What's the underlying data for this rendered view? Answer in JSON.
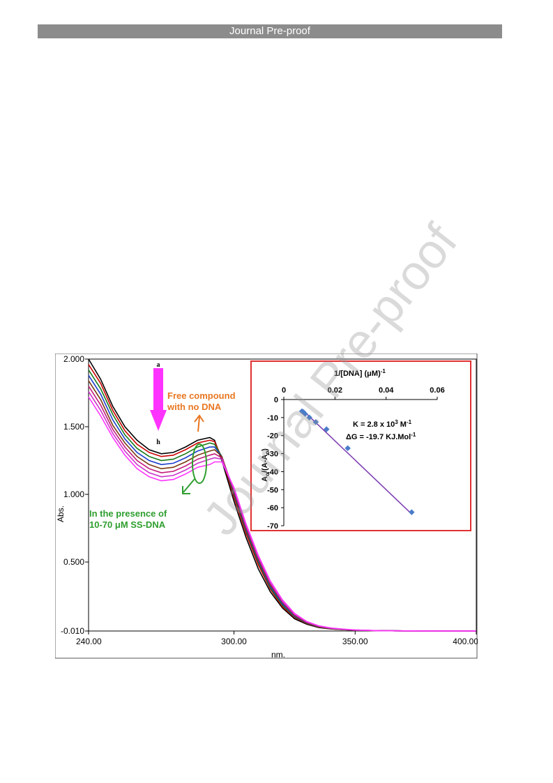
{
  "header": {
    "title": "Journal Pre-proof"
  },
  "watermark": "Journal Pre-proof",
  "chart_data": [
    {
      "type": "line",
      "xlabel": "nm.",
      "ylabel": "Abs.",
      "xlim": [
        240,
        400
      ],
      "ylim": [
        -0.01,
        2.0
      ],
      "x_ticks": [
        "240.00",
        "300.00",
        "350.00",
        "400.00"
      ],
      "y_ticks": [
        "2.000",
        "1.500",
        "1.000",
        "0.500",
        "-0.010"
      ],
      "x_tick_values": [
        240,
        300,
        350,
        400
      ],
      "y_tick_values": [
        2.0,
        1.5,
        1.0,
        0.5,
        -0.01
      ],
      "x": [
        240,
        245,
        250,
        255,
        260,
        265,
        270,
        275,
        280,
        285,
        290,
        292,
        295,
        300,
        305,
        310,
        315,
        320,
        325,
        330,
        335,
        340,
        345,
        350,
        360,
        370,
        380,
        390,
        400
      ],
      "series_colors": [
        "#000000",
        "#cc0000",
        "#1a7a1a",
        "#1a3dcc",
        "#7a3a10",
        "#c2187a",
        "#cc33cc",
        "#ff33ff"
      ],
      "series": [
        {
          "values": [
            2.0,
            1.85,
            1.65,
            1.5,
            1.4,
            1.33,
            1.3,
            1.31,
            1.35,
            1.4,
            1.42,
            1.4,
            1.25,
            0.95,
            0.68,
            0.45,
            0.28,
            0.16,
            0.08,
            0.04,
            0.015,
            0.005,
            0.0,
            -0.005,
            -0.008,
            -0.009,
            -0.01,
            -0.01,
            -0.01
          ]
        },
        {
          "values": [
            1.96,
            1.82,
            1.62,
            1.47,
            1.37,
            1.31,
            1.28,
            1.29,
            1.33,
            1.38,
            1.4,
            1.39,
            1.27,
            0.98,
            0.71,
            0.48,
            0.3,
            0.17,
            0.09,
            0.045,
            0.018,
            0.006,
            0.0,
            -0.005,
            -0.008,
            -0.009,
            -0.01,
            -0.01,
            -0.01
          ]
        },
        {
          "values": [
            1.92,
            1.78,
            1.59,
            1.44,
            1.34,
            1.28,
            1.25,
            1.26,
            1.3,
            1.35,
            1.38,
            1.37,
            1.28,
            1.0,
            0.73,
            0.5,
            0.31,
            0.18,
            0.095,
            0.048,
            0.02,
            0.007,
            0.001,
            -0.004,
            -0.008,
            -0.009,
            -0.01,
            -0.01,
            -0.01
          ]
        },
        {
          "values": [
            1.88,
            1.74,
            1.55,
            1.41,
            1.31,
            1.25,
            1.22,
            1.23,
            1.27,
            1.32,
            1.35,
            1.35,
            1.28,
            1.01,
            0.74,
            0.51,
            0.32,
            0.19,
            0.1,
            0.05,
            0.022,
            0.008,
            0.002,
            -0.004,
            -0.008,
            -0.009,
            -0.01,
            -0.01,
            -0.01
          ]
        },
        {
          "values": [
            1.84,
            1.7,
            1.51,
            1.38,
            1.28,
            1.22,
            1.19,
            1.2,
            1.24,
            1.29,
            1.32,
            1.33,
            1.28,
            1.02,
            0.75,
            0.52,
            0.33,
            0.2,
            0.105,
            0.052,
            0.023,
            0.009,
            0.002,
            -0.004,
            -0.008,
            -0.009,
            -0.01,
            -0.01,
            -0.01
          ]
        },
        {
          "values": [
            1.8,
            1.66,
            1.48,
            1.35,
            1.25,
            1.19,
            1.16,
            1.17,
            1.21,
            1.26,
            1.29,
            1.3,
            1.27,
            1.03,
            0.76,
            0.53,
            0.34,
            0.205,
            0.11,
            0.055,
            0.025,
            0.01,
            0.003,
            -0.003,
            -0.008,
            -0.009,
            -0.01,
            -0.01,
            -0.01
          ]
        },
        {
          "values": [
            1.76,
            1.62,
            1.45,
            1.32,
            1.22,
            1.16,
            1.13,
            1.14,
            1.18,
            1.23,
            1.26,
            1.27,
            1.26,
            1.04,
            0.77,
            0.54,
            0.35,
            0.21,
            0.115,
            0.058,
            0.027,
            0.011,
            0.003,
            -0.003,
            -0.008,
            -0.009,
            -0.01,
            -0.01,
            -0.01
          ]
        },
        {
          "values": [
            1.72,
            1.58,
            1.42,
            1.29,
            1.19,
            1.13,
            1.1,
            1.11,
            1.15,
            1.2,
            1.22,
            1.24,
            1.24,
            1.05,
            0.78,
            0.55,
            0.36,
            0.22,
            0.12,
            0.06,
            0.028,
            0.012,
            0.004,
            -0.003,
            -0.008,
            -0.009,
            -0.01,
            -0.01,
            -0.01
          ]
        }
      ],
      "annotations": {
        "arrow_top": "a",
        "arrow_bottom": "h",
        "free_line1": "Free compound",
        "free_line2": "with no DNA",
        "presence_line1": "In the presence of",
        "presence_line2": "10-70 μM SS-DNA"
      },
      "colors": {
        "arrow": "#ff33ff",
        "free": "#e87722",
        "presence": "#2e9e2e",
        "inset_border": "#e03030"
      }
    },
    {
      "type": "scatter",
      "x_axis_label": "1/[DNA] (μM)",
      "x_axis_exponent": "-1",
      "y_axis_label_main": "A",
      "y_axis_label_sub": "o",
      "y_axis_label_mid": "/(A-A",
      "y_axis_label_sub2": "o",
      "y_axis_label_end": ")",
      "xlim": [
        0,
        0.06
      ],
      "ylim": [
        -70,
        0
      ],
      "x_ticks": [
        "0",
        "0.02",
        "0.04",
        "0.06"
      ],
      "x_tick_values": [
        0,
        0.02,
        0.04,
        0.06
      ],
      "y_ticks": [
        "0",
        "-10",
        "-20",
        "-30",
        "-40",
        "-50",
        "-60",
        "-70"
      ],
      "y_tick_values": [
        0,
        -10,
        -20,
        -30,
        -40,
        -50,
        -60,
        -70
      ],
      "x": [
        0.0071,
        0.0077,
        0.0083,
        0.01,
        0.0125,
        0.0167,
        0.025,
        0.05
      ],
      "y": [
        -6.5,
        -7.0,
        -8.0,
        -10.0,
        -12.5,
        -16.5,
        -27.0,
        -62.5
      ],
      "fit_line": {
        "x": [
          0.0071,
          0.05
        ],
        "y": [
          -5.5,
          -63.5
        ]
      },
      "eq_k_prefix": "K = 2.8 x 10",
      "eq_k_exp": "3",
      "eq_k_unit": " M",
      "eq_k_unit_exp": "-1",
      "eq_g_prefix": "ΔG = -19.7 KJ.Mol",
      "eq_g_exp": "-1",
      "colors": {
        "points": "#4a7cc9",
        "fit": "#7a3ab0"
      }
    }
  ]
}
